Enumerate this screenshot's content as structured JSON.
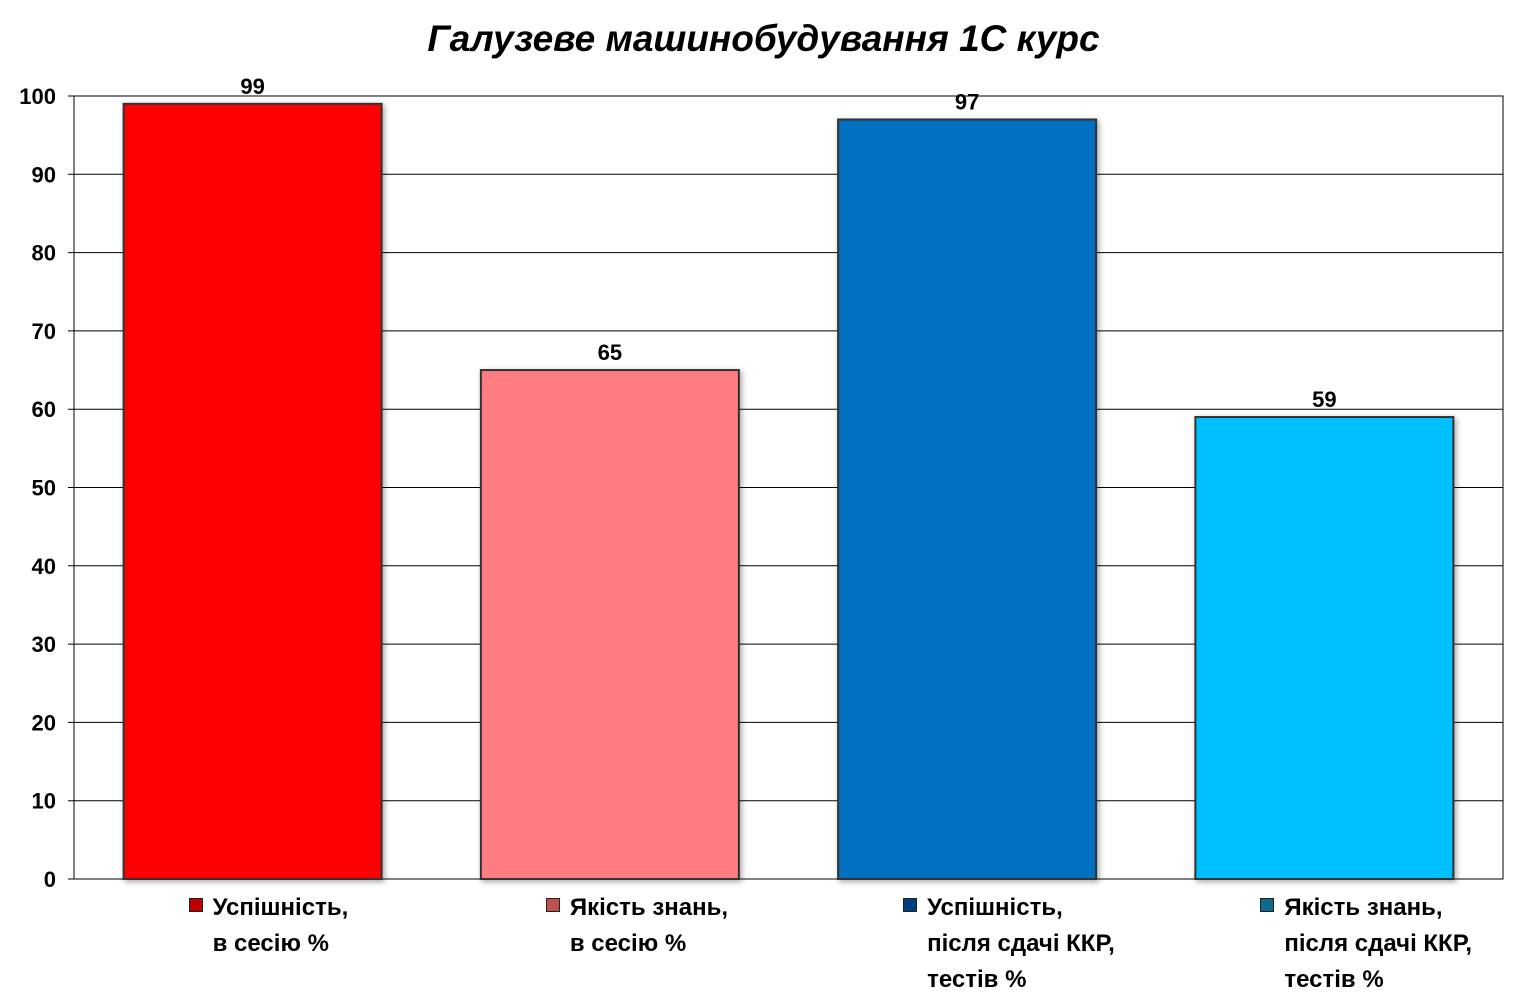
{
  "chart_data": {
    "type": "bar",
    "title": "Галузеве машинобудування 1С курс",
    "ylim": [
      0,
      100
    ],
    "yticks": [
      0,
      10,
      20,
      30,
      40,
      50,
      60,
      70,
      80,
      90,
      100
    ],
    "grid": true,
    "legend_position": "bottom",
    "series": [
      {
        "name": "Успішність,\nв сесію %",
        "value": 99,
        "color": "#FF0000",
        "legend_color": "#C00000"
      },
      {
        "name": "Якість знань,\nв сесію %",
        "value": 65,
        "color": "#FF7C80",
        "legend_color": "#C0504D"
      },
      {
        "name": "Успішність,\nпісля сдачі ККР,\nтестів %",
        "value": 97,
        "color": "#0070C0",
        "legend_color": "#003F7F"
      },
      {
        "name": "Якість знань,\nпісля сдачі ККР,\nтестів %",
        "value": 59,
        "color": "#00BFFF",
        "legend_color": "#0E6A8C"
      }
    ]
  }
}
